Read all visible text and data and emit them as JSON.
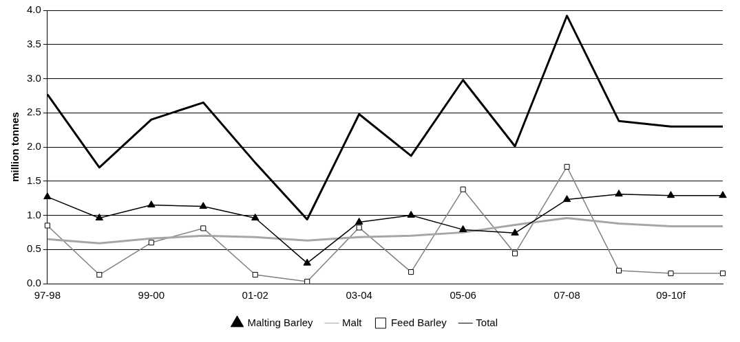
{
  "chart_data": {
    "type": "line",
    "ylabel": "million tonnes",
    "categories": [
      "97-98",
      null,
      "99-00",
      null,
      "01-02",
      null,
      "03-04",
      null,
      "05-06",
      null,
      "07-08",
      null,
      "09-10f",
      null
    ],
    "series": [
      {
        "name": "Malting Barley",
        "color": "#000000",
        "marker": "triangle",
        "values": [
          1.27,
          0.96,
          1.15,
          1.13,
          0.96,
          0.3,
          0.9,
          1.0,
          0.79,
          0.74,
          1.23,
          1.31,
          1.29,
          1.29
        ]
      },
      {
        "name": "Malt",
        "color": "#a6a6a6",
        "marker": "none",
        "values": [
          0.65,
          0.59,
          0.66,
          0.7,
          0.68,
          0.63,
          0.68,
          0.7,
          0.75,
          0.86,
          0.96,
          0.88,
          0.84,
          0.84
        ]
      },
      {
        "name": "Feed Barley",
        "color": "#808080",
        "marker": "square",
        "values": [
          0.85,
          0.13,
          0.6,
          0.81,
          0.13,
          0.03,
          0.82,
          0.17,
          1.38,
          0.44,
          1.71,
          0.19,
          0.15,
          0.15
        ]
      },
      {
        "name": "Total",
        "color": "#000000",
        "marker": "none",
        "values": [
          2.77,
          1.7,
          2.4,
          2.65,
          1.77,
          0.94,
          2.48,
          1.87,
          2.98,
          2.01,
          3.92,
          2.38,
          2.3,
          2.3
        ]
      }
    ],
    "ylim": [
      0,
      4
    ],
    "yticks": [
      {
        "value": 0,
        "label": "0.0"
      },
      {
        "value": 0.5,
        "label": "0.5"
      },
      {
        "value": 1,
        "label": "1.0"
      },
      {
        "value": 1.5,
        "label": "1.5"
      },
      {
        "value": 2,
        "label": "2.0"
      },
      {
        "value": 2.5,
        "label": "2.5"
      },
      {
        "value": 3,
        "label": "3.0"
      },
      {
        "value": 3.5,
        "label": "3.5"
      },
      {
        "value": 4,
        "label": "4.0"
      }
    ],
    "grid": "y",
    "legend": "bottom",
    "line_style": "solid"
  }
}
